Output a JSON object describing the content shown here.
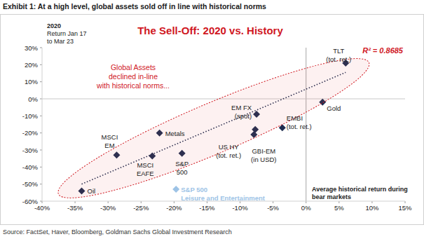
{
  "chart_data": {
    "type": "scatter",
    "exhibit": "Exhibit 1: At a high level, global assets sold off in line with historical norms",
    "title": "The Sell-Off: 2020 vs. History",
    "y_label": "2020\nReturn Jan 17\nto Mar 23",
    "x_label": "Average historical return during\nbear markets",
    "annotation": "Global Assets\ndeclined in-line\nwith historical norms...",
    "r_squared": "R² = 0.8685",
    "source": "Source: FactSet, Haver, Bloomberg, Goldman Sachs Global Investment Research",
    "xlim": [
      -40,
      15
    ],
    "ylim": [
      -60,
      30
    ],
    "xticks": [
      {
        "value": -40,
        "label": "-40%"
      },
      {
        "value": -35,
        "label": "-35%"
      },
      {
        "value": -30,
        "label": "-30%"
      },
      {
        "value": -25,
        "label": "-25%"
      },
      {
        "value": -20,
        "label": "-20%"
      },
      {
        "value": -15,
        "label": "-15%"
      },
      {
        "value": -10,
        "label": "-10%"
      },
      {
        "value": -5,
        "label": "-5%"
      },
      {
        "value": 0,
        "label": "0%"
      },
      {
        "value": 5,
        "label": "5%"
      },
      {
        "value": 10,
        "label": "10%"
      },
      {
        "value": 15,
        "label": "15%"
      }
    ],
    "yticks": [
      {
        "value": 30,
        "label": "30%"
      },
      {
        "value": 20,
        "label": "20%"
      },
      {
        "value": 10,
        "label": "10%"
      },
      {
        "value": 0,
        "label": "0%"
      },
      {
        "value": -10,
        "label": "-10%"
      },
      {
        "value": -20,
        "label": "-20%"
      },
      {
        "value": -30,
        "label": "-30%"
      },
      {
        "value": -40,
        "label": "-40%"
      },
      {
        "value": -50,
        "label": "-50%"
      },
      {
        "value": -60,
        "label": "-60%"
      }
    ],
    "grid": false,
    "trend_line": {
      "x": [
        -34,
        6
      ],
      "y": [
        -50,
        15.5
      ],
      "color": "#1f2d50",
      "line_style": "dotted"
    },
    "series": [
      {
        "color": "#1f2d50",
        "marker": "diamond",
        "x": [
          6,
          2.5,
          -7.5,
          -3.6,
          -7.7,
          -7.9,
          -22.2,
          -28.7,
          -23.3,
          -18.8,
          -34
        ],
        "values": [
          21,
          -2,
          -9,
          -17,
          -18,
          -21,
          -20,
          -33,
          -33.5,
          -32,
          -54
        ],
        "labels": [
          "TLT\n(tot. ret.)",
          "Gold",
          "EM FX\n(spot)",
          "EMBI\n(tot. ret.)",
          "US HY\n(tot. ret.)",
          "GBI-EM\n(in USD)",
          "Metals",
          "MSCI\nEM",
          "MSCI\nEAFE",
          "S&P\n500",
          "Oil"
        ]
      },
      {
        "color": "#9dc3e6",
        "marker": "diamond",
        "x": [
          -19.7
        ],
        "values": [
          -53
        ],
        "labels": [
          "S&P 500\nLeisure and Entertainment"
        ]
      }
    ]
  }
}
